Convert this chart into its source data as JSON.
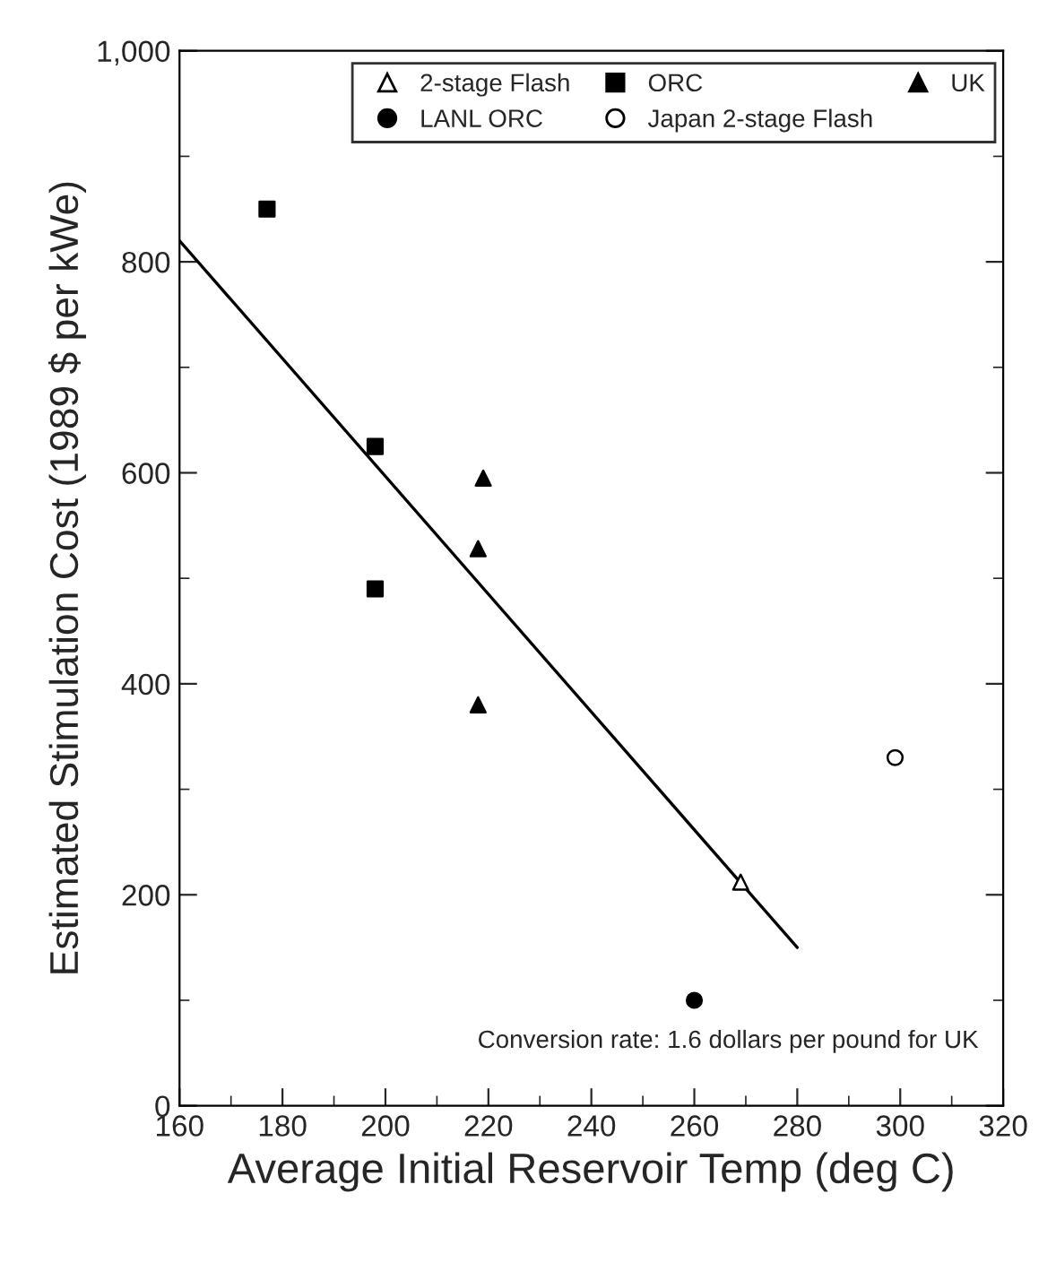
{
  "chart_data": {
    "type": "scatter",
    "xlabel": "Average Initial Reservoir Temp (deg C)",
    "ylabel": "Estimated Stimulation Cost (1989 $ per kWe)",
    "xlim": [
      160,
      320
    ],
    "xticks": [
      160,
      180,
      200,
      220,
      240,
      260,
      280,
      300,
      320
    ],
    "ylim": [
      0,
      1000
    ],
    "yticks": [
      0,
      200,
      400,
      600,
      800,
      {
        "value": 1000,
        "label": "1,000"
      }
    ],
    "grid": false,
    "legend": "top",
    "series": [
      {
        "name": "2-stage Flash",
        "marker": "triangle",
        "color": "#ffffff",
        "x": [
          269
        ],
        "values": [
          212
        ]
      },
      {
        "name": "LANL ORC",
        "marker": "circle",
        "color": "#000000",
        "x": [
          260
        ],
        "values": [
          100
        ]
      },
      {
        "name": "ORC",
        "marker": "square",
        "color": "#000000",
        "x": [
          177,
          198,
          198
        ],
        "values": [
          850,
          625,
          490
        ]
      },
      {
        "name": "Japan 2-stage Flash",
        "marker": "circle",
        "color": "#ffffff",
        "x": [
          299
        ],
        "values": [
          330
        ]
      },
      {
        "name": "UK",
        "marker": "triangle",
        "color": "#000000",
        "x": [
          219,
          218,
          218
        ],
        "values": [
          595,
          528,
          380
        ]
      },
      {
        "type": "line",
        "color": "#000000",
        "line_style": "solid",
        "x": [
          160,
          280
        ],
        "values": [
          820,
          150
        ]
      }
    ],
    "annotations": [
      "Conversion rate: 1.6 dollars per pound for UK"
    ]
  }
}
